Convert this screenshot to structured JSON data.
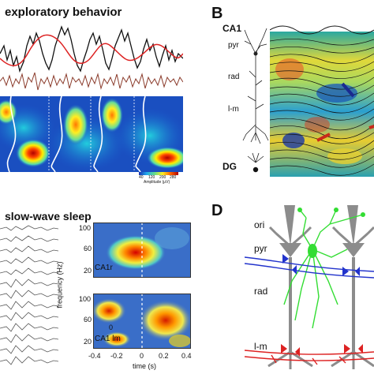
{
  "panelA": {
    "title": "exploratory behavior"
  },
  "panelB": {
    "letter": "B",
    "region": "CA1",
    "layers": [
      "pyr",
      "rad",
      "l-m"
    ],
    "dg": "DG"
  },
  "colorbar": {
    "ticks": [
      "40",
      "120",
      "200",
      "280"
    ],
    "label": "Amplitude (μV)"
  },
  "panelC": {
    "title": "slow-wave sleep"
  },
  "spectrogram": {
    "ylabel": "frequency (Hz)",
    "xlabel": "time (s)",
    "top": {
      "label": "CA1r",
      "yticks": [
        "100",
        "60",
        "20"
      ]
    },
    "bottom": {
      "label": "CA1 lm",
      "yticks": [
        "100",
        "60",
        "20"
      ],
      "inner_tick": "0"
    },
    "xticks": [
      "-0.4",
      "-0.2",
      "0",
      "0.2",
      "0.4"
    ]
  },
  "panelD": {
    "letter": "D",
    "layers": [
      "ori",
      "pyr",
      "rad",
      "l-m"
    ],
    "colors": {
      "neuron": "#8c8c8c",
      "interneuron": "#33dd33",
      "schaffer": "#2233cc",
      "perforant": "#dd2222"
    }
  }
}
